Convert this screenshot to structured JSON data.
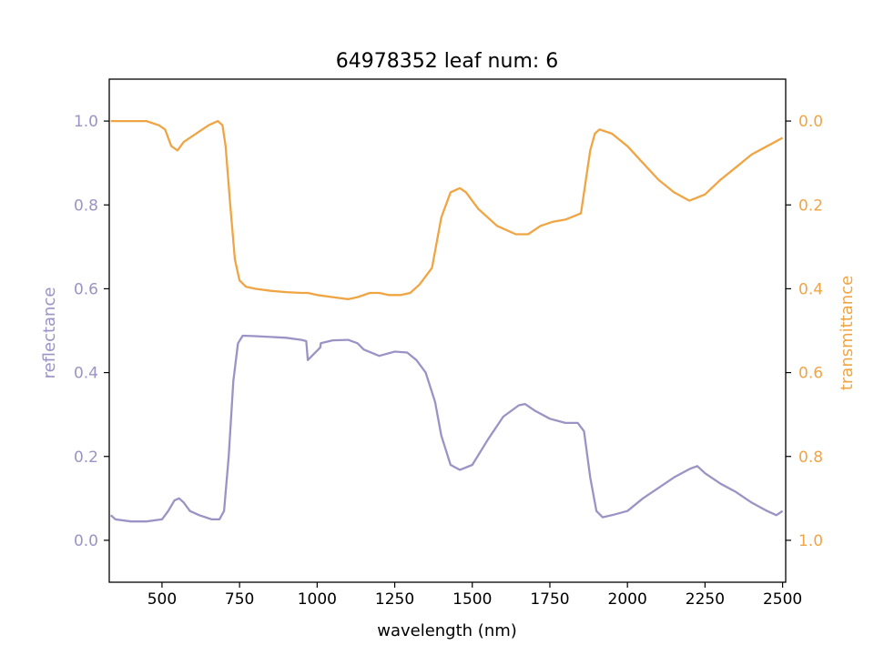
{
  "chart_data": {
    "type": "line",
    "title": "64978352 leaf num: 6",
    "xlabel": "wavelength (nm)",
    "ylabel_left": "reflectance",
    "ylabel_right": "transmittance",
    "xlim": [
      330,
      2510
    ],
    "ylim_left": [
      -0.1,
      1.1
    ],
    "ylim_right": [
      1.1,
      -0.1
    ],
    "right_axis_inverted": true,
    "x_ticks": [
      500,
      750,
      1000,
      1250,
      1500,
      1750,
      2000,
      2250,
      2500
    ],
    "y_left_ticks": [
      "0.0",
      "0.2",
      "0.4",
      "0.6",
      "0.8",
      "1.0"
    ],
    "y_right_ticks": [
      "0.0",
      "0.2",
      "0.4",
      "0.6",
      "0.8",
      "1.0"
    ],
    "grid": false,
    "legend": "none",
    "colors": {
      "reflectance": "#9b93c5",
      "transmittance": "#f0a544"
    },
    "series": [
      {
        "axis": "left",
        "color": "#9b93c5",
        "points": [
          [
            335,
            0.06
          ],
          [
            350,
            0.05
          ],
          [
            400,
            0.045
          ],
          [
            450,
            0.045
          ],
          [
            500,
            0.05
          ],
          [
            520,
            0.07
          ],
          [
            540,
            0.095
          ],
          [
            555,
            0.1
          ],
          [
            570,
            0.09
          ],
          [
            590,
            0.07
          ],
          [
            620,
            0.06
          ],
          [
            660,
            0.05
          ],
          [
            685,
            0.05
          ],
          [
            700,
            0.07
          ],
          [
            715,
            0.2
          ],
          [
            730,
            0.38
          ],
          [
            745,
            0.47
          ],
          [
            760,
            0.488
          ],
          [
            800,
            0.487
          ],
          [
            850,
            0.485
          ],
          [
            900,
            0.483
          ],
          [
            950,
            0.478
          ],
          [
            965,
            0.475
          ],
          [
            970,
            0.43
          ],
          [
            1010,
            0.46
          ],
          [
            1012,
            0.47
          ],
          [
            1050,
            0.477
          ],
          [
            1100,
            0.478
          ],
          [
            1130,
            0.47
          ],
          [
            1150,
            0.455
          ],
          [
            1200,
            0.44
          ],
          [
            1250,
            0.45
          ],
          [
            1290,
            0.448
          ],
          [
            1320,
            0.43
          ],
          [
            1350,
            0.4
          ],
          [
            1380,
            0.33
          ],
          [
            1400,
            0.25
          ],
          [
            1430,
            0.18
          ],
          [
            1460,
            0.168
          ],
          [
            1500,
            0.18
          ],
          [
            1550,
            0.24
          ],
          [
            1600,
            0.295
          ],
          [
            1650,
            0.322
          ],
          [
            1670,
            0.325
          ],
          [
            1700,
            0.31
          ],
          [
            1750,
            0.29
          ],
          [
            1800,
            0.28
          ],
          [
            1840,
            0.28
          ],
          [
            1860,
            0.26
          ],
          [
            1880,
            0.15
          ],
          [
            1900,
            0.07
          ],
          [
            1920,
            0.055
          ],
          [
            1950,
            0.06
          ],
          [
            2000,
            0.07
          ],
          [
            2050,
            0.1
          ],
          [
            2100,
            0.125
          ],
          [
            2150,
            0.15
          ],
          [
            2200,
            0.17
          ],
          [
            2225,
            0.177
          ],
          [
            2250,
            0.16
          ],
          [
            2300,
            0.135
          ],
          [
            2350,
            0.115
          ],
          [
            2400,
            0.09
          ],
          [
            2450,
            0.07
          ],
          [
            2480,
            0.06
          ],
          [
            2500,
            0.07
          ]
        ]
      },
      {
        "axis": "right",
        "color": "#f0a544",
        "points": [
          [
            335,
            0.0
          ],
          [
            400,
            0.0
          ],
          [
            450,
            0.0
          ],
          [
            490,
            0.01
          ],
          [
            510,
            0.02
          ],
          [
            530,
            0.06
          ],
          [
            550,
            0.07
          ],
          [
            570,
            0.05
          ],
          [
            600,
            0.035
          ],
          [
            650,
            0.01
          ],
          [
            680,
            0.0
          ],
          [
            695,
            0.01
          ],
          [
            705,
            0.06
          ],
          [
            720,
            0.2
          ],
          [
            735,
            0.33
          ],
          [
            750,
            0.38
          ],
          [
            770,
            0.395
          ],
          [
            800,
            0.4
          ],
          [
            850,
            0.405
          ],
          [
            900,
            0.408
          ],
          [
            950,
            0.41
          ],
          [
            970,
            0.41
          ],
          [
            1000,
            0.415
          ],
          [
            1050,
            0.42
          ],
          [
            1100,
            0.425
          ],
          [
            1130,
            0.42
          ],
          [
            1170,
            0.41
          ],
          [
            1200,
            0.41
          ],
          [
            1230,
            0.415
          ],
          [
            1270,
            0.415
          ],
          [
            1300,
            0.41
          ],
          [
            1330,
            0.39
          ],
          [
            1370,
            0.35
          ],
          [
            1400,
            0.23
          ],
          [
            1430,
            0.17
          ],
          [
            1460,
            0.16
          ],
          [
            1480,
            0.17
          ],
          [
            1520,
            0.21
          ],
          [
            1580,
            0.25
          ],
          [
            1640,
            0.27
          ],
          [
            1680,
            0.27
          ],
          [
            1720,
            0.25
          ],
          [
            1760,
            0.24
          ],
          [
            1800,
            0.235
          ],
          [
            1850,
            0.22
          ],
          [
            1880,
            0.07
          ],
          [
            1895,
            0.03
          ],
          [
            1910,
            0.02
          ],
          [
            1950,
            0.03
          ],
          [
            2000,
            0.06
          ],
          [
            2050,
            0.1
          ],
          [
            2100,
            0.14
          ],
          [
            2150,
            0.17
          ],
          [
            2200,
            0.19
          ],
          [
            2250,
            0.175
          ],
          [
            2300,
            0.14
          ],
          [
            2350,
            0.11
          ],
          [
            2400,
            0.08
          ],
          [
            2450,
            0.06
          ],
          [
            2500,
            0.04
          ]
        ]
      }
    ]
  }
}
